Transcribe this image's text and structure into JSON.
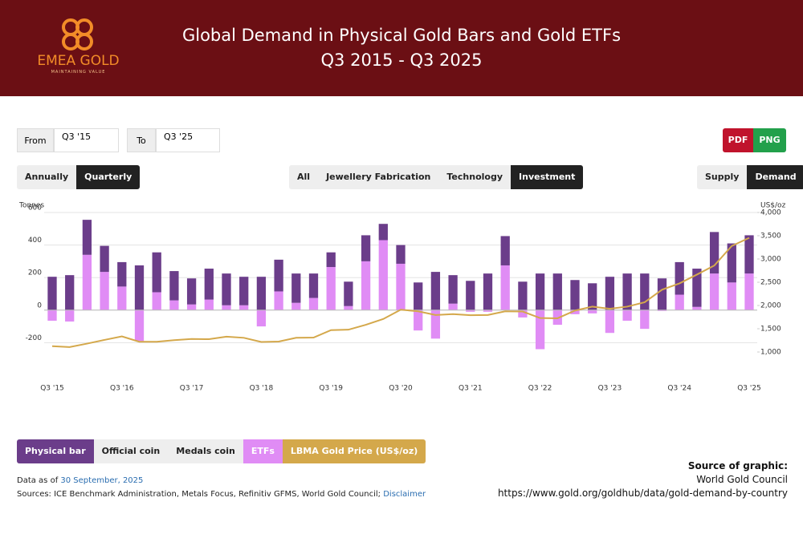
{
  "header": {
    "logo_text": "EMEA GOLD",
    "logo_tagline": "MAINTAINING VALUE"
  },
  "controls": {
    "from_label": "From",
    "from_value": "Q3 '15",
    "to_label": "To",
    "to_value": "Q3 '25",
    "export": [
      "PDF",
      "PNG"
    ],
    "period": [
      "Annually",
      "Quarterly"
    ],
    "sectors": [
      "All",
      "Jewellery Fabrication",
      "Technology",
      "Investment"
    ],
    "view": [
      "Supply",
      "Demand"
    ],
    "inactive_legend": [
      "Official coin",
      "Medals coin"
    ]
  },
  "chart_data": {
    "type": "bar",
    "stacked": true,
    "title": "Global Demand in Physical Gold Bars and Gold ETFs",
    "subtitle": "Q3 2015 - Q3 2025",
    "ylabel": "Tonnes",
    "y2label": "US$/oz",
    "categories": [
      "Q3 '15",
      null,
      null,
      null,
      "Q3 '16",
      null,
      null,
      null,
      "Q3 '17",
      null,
      null,
      null,
      "Q3 '18",
      null,
      null,
      null,
      "Q3 '19",
      null,
      null,
      null,
      "Q3 '20",
      null,
      null,
      null,
      "Q3 '21",
      null,
      null,
      null,
      "Q3 '22",
      null,
      null,
      null,
      "Q3 '23",
      null,
      null,
      null,
      "Q3 '24",
      null,
      null,
      null,
      "Q3 '25"
    ],
    "series": [
      {
        "name": "Physical bar",
        "color": "#6b3d8a",
        "values": [
          205,
          215,
          215,
          160,
          150,
          275,
          245,
          180,
          160,
          190,
          195,
          175,
          205,
          195,
          180,
          150,
          90,
          150,
          160,
          100,
          115,
          170,
          235,
          175,
          180,
          225,
          180,
          175,
          225,
          225,
          185,
          165,
          205,
          225,
          225,
          195,
          200,
          235,
          255,
          240,
          235
        ]
      },
      {
        "name": "ETFs",
        "color": "#e08cf5",
        "values": [
          -65,
          -70,
          340,
          235,
          145,
          -190,
          110,
          60,
          35,
          65,
          30,
          30,
          -100,
          115,
          45,
          75,
          265,
          25,
          300,
          430,
          285,
          -125,
          -175,
          40,
          -10,
          -10,
          275,
          -45,
          -240,
          -90,
          -25,
          -20,
          -140,
          -65,
          -115,
          -5,
          95,
          20,
          225,
          170,
          225
        ]
      },
      {
        "name": "LBMA Gold Price (US$/oz)",
        "color": "#d4a84b",
        "type": "line",
        "axis": "y2",
        "values": [
          1125,
          1105,
          1180,
          1260,
          1335,
          1220,
          1220,
          1255,
          1280,
          1275,
          1330,
          1305,
          1215,
          1225,
          1305,
          1310,
          1470,
          1480,
          1585,
          1710,
          1910,
          1875,
          1795,
          1815,
          1790,
          1795,
          1875,
          1870,
          1730,
          1725,
          1890,
          1975,
          1930,
          1975,
          2070,
          2340,
          2475,
          2665,
          2860,
          3280,
          3455
        ]
      }
    ],
    "ylim": [
      -400,
      600
    ],
    "yticks": [
      -200,
      0,
      200,
      400,
      600
    ],
    "y2lim": [
      500,
      4000
    ],
    "y2ticks": [
      {
        "value": 1000,
        "label": "1,000"
      },
      {
        "value": 1500,
        "label": "1,500"
      },
      {
        "value": 2000,
        "label": "2,000"
      },
      {
        "value": 2500,
        "label": "2,500"
      },
      {
        "value": 3000,
        "label": "3,000"
      },
      {
        "value": 3500,
        "label": "3,500"
      },
      {
        "value": 4000,
        "label": "4,000"
      }
    ],
    "grid": true
  },
  "footer": {
    "data_as_of_label": "Data as of",
    "data_as_of_date": "30 September, 2025",
    "sources": "Sources: ICE Benchmark Administration, Metals Focus, Refinitiv GFMS, World Gold Council;",
    "disclaimer": "Disclaimer",
    "source_title": "Source of graphic:",
    "source_org": "World Gold Council",
    "source_url": "https://www.gold.org/goldhub/data/gold-demand-by-country"
  }
}
